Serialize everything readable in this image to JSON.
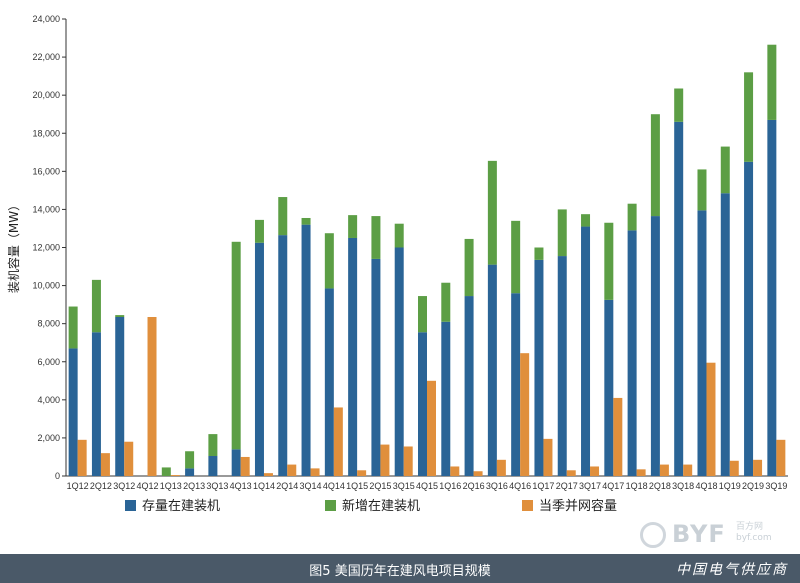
{
  "caption": "图5 美国历年在建风电项目规模",
  "brand": "中国电气供应商",
  "watermark": {
    "logo": "BYF",
    "sub_line1": "百方网",
    "sub_line2": "byf.com"
  },
  "colors": {
    "blue": "#2a6496",
    "green": "#5c9e45",
    "orange": "#e08f3c"
  },
  "chart_data": {
    "type": "bar",
    "title": "",
    "xlabel": "",
    "ylabel": "装机容量（MW）",
    "ylim": [
      0,
      24000
    ],
    "yticks": [
      0,
      2000,
      4000,
      6000,
      8000,
      10000,
      12000,
      14000,
      16000,
      18000,
      20000,
      22000,
      24000
    ],
    "ytick_labels": [
      "0",
      "2,000",
      "4,000",
      "6,000",
      "8,000",
      "10,000",
      "12,000",
      "14,000",
      "16,000",
      "18,000",
      "20,000",
      "22,000",
      "24,000"
    ],
    "grid": false,
    "legend_position": "bottom",
    "categories": [
      "1Q12",
      "2Q12",
      "3Q12",
      "4Q12",
      "1Q13",
      "2Q13",
      "3Q13",
      "4Q13",
      "1Q14",
      "2Q14",
      "3Q14",
      "4Q14",
      "1Q15",
      "2Q15",
      "3Q15",
      "4Q15",
      "1Q16",
      "2Q16",
      "3Q16",
      "4Q16",
      "1Q17",
      "2Q17",
      "3Q17",
      "4Q17",
      "1Q18",
      "2Q18",
      "3Q18",
      "4Q18",
      "1Q19",
      "2Q19",
      "3Q19"
    ],
    "series": [
      {
        "name": "存量在建装机",
        "stack": "construction",
        "color": "#2a6496",
        "values": [
          6700,
          7550,
          8350,
          0,
          0,
          400,
          1050,
          1400,
          12250,
          12650,
          13200,
          9850,
          12500,
          11400,
          12000,
          7550,
          8100,
          9450,
          11100,
          9600,
          11350,
          11550,
          13100,
          9250,
          12900,
          13650,
          18600,
          13950,
          14850,
          16500,
          18700
        ]
      },
      {
        "name": "新增在建装机",
        "stack": "construction",
        "color": "#5c9e45",
        "values": [
          2200,
          2750,
          100,
          0,
          450,
          900,
          1150,
          10900,
          1200,
          2000,
          350,
          2900,
          1200,
          2250,
          1250,
          1900,
          2050,
          3000,
          5450,
          3800,
          650,
          2450,
          650,
          4050,
          1400,
          5350,
          1750,
          2150,
          2450,
          4700,
          3950
        ]
      },
      {
        "name": "当季并网容量",
        "stack": "grid",
        "color": "#e08f3c",
        "values": [
          1900,
          1200,
          1800,
          8350,
          50,
          0,
          0,
          1000,
          150,
          600,
          400,
          3600,
          300,
          1650,
          1550,
          5000,
          500,
          250,
          850,
          6450,
          1950,
          300,
          500,
          4100,
          350,
          600,
          600,
          5950,
          800,
          850,
          1900
        ]
      }
    ]
  }
}
